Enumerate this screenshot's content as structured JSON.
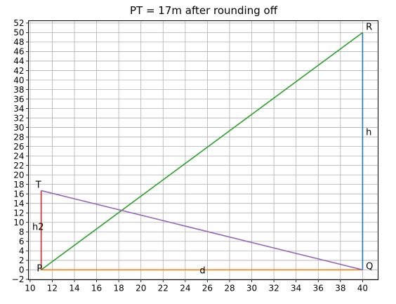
{
  "chart_data": {
    "type": "line",
    "title": "PT = 17m after rounding off",
    "xlabel": "",
    "ylabel": "",
    "xlim": [
      9.85,
      41.4
    ],
    "ylim": [
      -2.1,
      52.5
    ],
    "xticks": [
      10,
      12,
      14,
      16,
      18,
      20,
      22,
      24,
      26,
      28,
      30,
      32,
      34,
      36,
      38,
      40
    ],
    "yticks": [
      -2,
      0,
      2,
      4,
      6,
      8,
      10,
      12,
      14,
      16,
      18,
      20,
      22,
      24,
      26,
      28,
      30,
      32,
      34,
      36,
      38,
      40,
      42,
      44,
      46,
      48,
      50,
      52
    ],
    "grid": true,
    "series": [
      {
        "color": "#1f77b4",
        "x": [
          40,
          40
        ],
        "y": [
          0,
          50
        ]
      },
      {
        "color": "#ff7f0e",
        "x": [
          11,
          40
        ],
        "y": [
          0,
          0
        ]
      },
      {
        "color": "#2ca02c",
        "x": [
          11,
          40
        ],
        "y": [
          0,
          50
        ]
      },
      {
        "color": "#d62728",
        "x": [
          11,
          11
        ],
        "y": [
          0,
          16.7
        ]
      },
      {
        "color": "#9467bd",
        "x": [
          11,
          40
        ],
        "y": [
          16.7,
          0
        ]
      }
    ],
    "annotations": [
      {
        "text": "R",
        "x": 40.3,
        "y": 50.6
      },
      {
        "text": "h",
        "x": 40.3,
        "y": 28.4
      },
      {
        "text": "Q",
        "x": 40.3,
        "y": 0.1
      },
      {
        "text": "d",
        "x": 25.3,
        "y": -0.8
      },
      {
        "text": "P",
        "x": 10.6,
        "y": -0.3
      },
      {
        "text": "T",
        "x": 10.5,
        "y": 17.3
      },
      {
        "text": "h2",
        "x": 10.2,
        "y": 8.4
      }
    ]
  }
}
